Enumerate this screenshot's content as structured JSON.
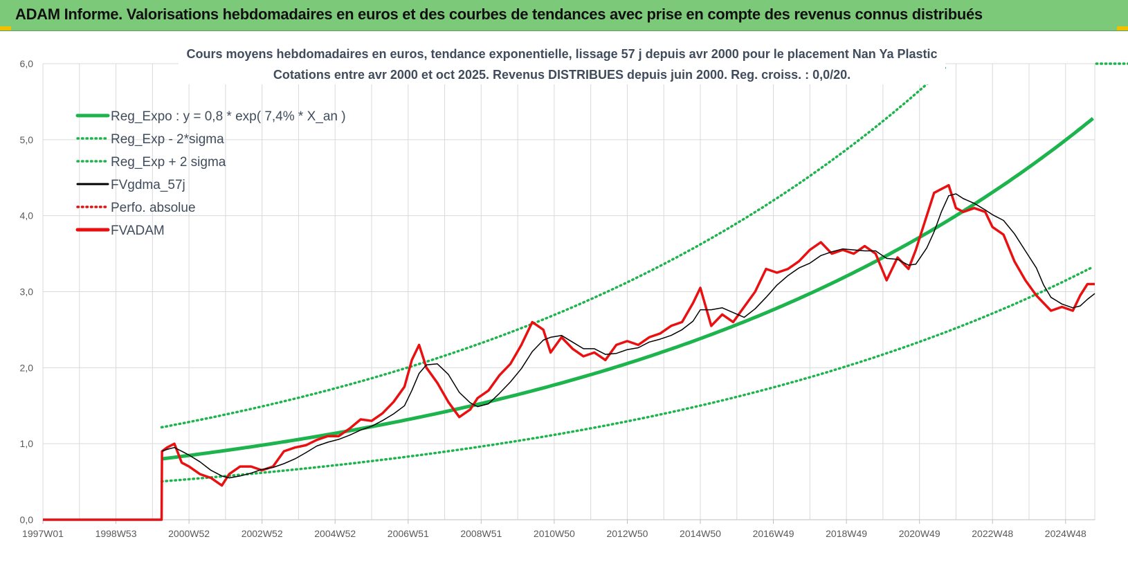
{
  "banner": {
    "title": "ADAM Informe. Valorisations hebdomadaires en euros et des courbes de tendances avec prise en compte des revenus connus distribués",
    "color": "#7dc97a"
  },
  "chart_data": {
    "type": "line",
    "subtitle_lines": [
      "Cours moyens hebdomadaires en euros, tendance exponentielle, lissage 57 j depuis avr 2000 pour le placement Nan Ya Plastic",
      "Cotations entre avr 2000 et oct 2025. Revenus DISTRIBUES depuis juin 2000. Reg. croiss. : 0,0/20."
    ],
    "y_ticks": [
      "0,0",
      "1,0",
      "2,0",
      "3,0",
      "4,0",
      "5,0",
      "6,0"
    ],
    "ylim": [
      0,
      6
    ],
    "x_ticks": [
      "1997W01",
      "1998W53",
      "2000W52",
      "2002W52",
      "2004W52",
      "2006W51",
      "2008W51",
      "2010W50",
      "2012W50",
      "2014W50",
      "2016W49",
      "2018W49",
      "2020W49",
      "2022W48",
      "2024W48"
    ],
    "x_tick_years": [
      1997.0,
      1999.0,
      2001.0,
      2003.0,
      2005.0,
      2007.0,
      2009.0,
      2011.0,
      2013.0,
      2015.0,
      2017.0,
      2019.0,
      2021.0,
      2023.0,
      2025.0
    ],
    "xlim": [
      1997.0,
      2025.8
    ],
    "grid": true,
    "legend_position": "top-left",
    "legend": [
      {
        "label": "Reg_Expo : y = 0,8 * exp( 7,4% *  X_an )",
        "color": "#1db34d",
        "style": "solid-thick"
      },
      {
        "label": "Reg_Exp - 2*sigma",
        "color": "#1db34d",
        "style": "dotted"
      },
      {
        "label": "Reg_Exp + 2 sigma",
        "color": "#1db34d",
        "style": "dotted"
      },
      {
        "label": "FVgdma_57j",
        "color": "#000000",
        "style": "solid"
      },
      {
        "label": "Perfo. absolue",
        "color": "#e01010",
        "style": "dotted"
      },
      {
        "label": "FVADAM",
        "color": "#e81010",
        "style": "solid-thick"
      }
    ],
    "regression": {
      "name": "Reg_Expo",
      "a": 0.8,
      "rate": 0.074,
      "start": 2000.25,
      "end": 2025.8
    },
    "band_lower": {
      "name": "Reg_Exp - 2*sigma",
      "factor": 0.63
    },
    "band_upper": {
      "name": "Reg_Exp + 2 sigma",
      "factor": 1.52,
      "cap": 6.0
    },
    "fvadam": {
      "name": "FVADAM",
      "x": [
        1997.0,
        2000.25,
        2000.26,
        2000.4,
        2000.6,
        2000.8,
        2001.0,
        2001.3,
        2001.6,
        2001.9,
        2002.1,
        2002.4,
        2002.7,
        2003.0,
        2003.3,
        2003.6,
        2003.9,
        2004.2,
        2004.5,
        2004.8,
        2005.1,
        2005.4,
        2005.7,
        2006.0,
        2006.3,
        2006.6,
        2006.9,
        2007.1,
        2007.3,
        2007.5,
        2007.8,
        2008.1,
        2008.4,
        2008.7,
        2008.9,
        2009.2,
        2009.5,
        2009.8,
        2010.1,
        2010.4,
        2010.7,
        2010.9,
        2011.2,
        2011.5,
        2011.8,
        2012.1,
        2012.4,
        2012.7,
        2013.0,
        2013.3,
        2013.6,
        2013.9,
        2014.2,
        2014.5,
        2014.8,
        2015.0,
        2015.3,
        2015.6,
        2015.9,
        2016.2,
        2016.5,
        2016.8,
        2017.1,
        2017.4,
        2017.7,
        2018.0,
        2018.3,
        2018.6,
        2018.9,
        2019.2,
        2019.5,
        2019.8,
        2020.1,
        2020.4,
        2020.7,
        2020.9,
        2021.2,
        2021.4,
        2021.6,
        2021.8,
        2022.0,
        2022.2,
        2022.5,
        2022.8,
        2023.0,
        2023.3,
        2023.6,
        2023.9,
        2024.2,
        2024.4,
        2024.6,
        2024.9,
        2025.2,
        2025.4,
        2025.6,
        2025.8
      ],
      "y": [
        0.0,
        0.0,
        0.9,
        0.95,
        1.0,
        0.75,
        0.7,
        0.6,
        0.55,
        0.45,
        0.6,
        0.7,
        0.7,
        0.65,
        0.7,
        0.9,
        0.95,
        0.98,
        1.05,
        1.1,
        1.1,
        1.2,
        1.32,
        1.3,
        1.4,
        1.55,
        1.75,
        2.1,
        2.3,
        2.0,
        1.8,
        1.55,
        1.35,
        1.45,
        1.6,
        1.7,
        1.9,
        2.05,
        2.3,
        2.6,
        2.5,
        2.2,
        2.4,
        2.25,
        2.15,
        2.2,
        2.1,
        2.3,
        2.35,
        2.3,
        2.4,
        2.45,
        2.55,
        2.6,
        2.85,
        3.05,
        2.55,
        2.7,
        2.6,
        2.8,
        3.0,
        3.3,
        3.25,
        3.3,
        3.4,
        3.55,
        3.65,
        3.5,
        3.55,
        3.5,
        3.6,
        3.5,
        3.15,
        3.45,
        3.3,
        3.55,
        4.0,
        4.3,
        4.35,
        4.4,
        4.1,
        4.05,
        4.1,
        4.05,
        3.85,
        3.75,
        3.4,
        3.15,
        2.95,
        2.85,
        2.75,
        2.8,
        2.75,
        2.95,
        3.1,
        3.1
      ]
    },
    "fvgdma_57j": {
      "name": "FVgdma_57j",
      "window": 4
    }
  }
}
